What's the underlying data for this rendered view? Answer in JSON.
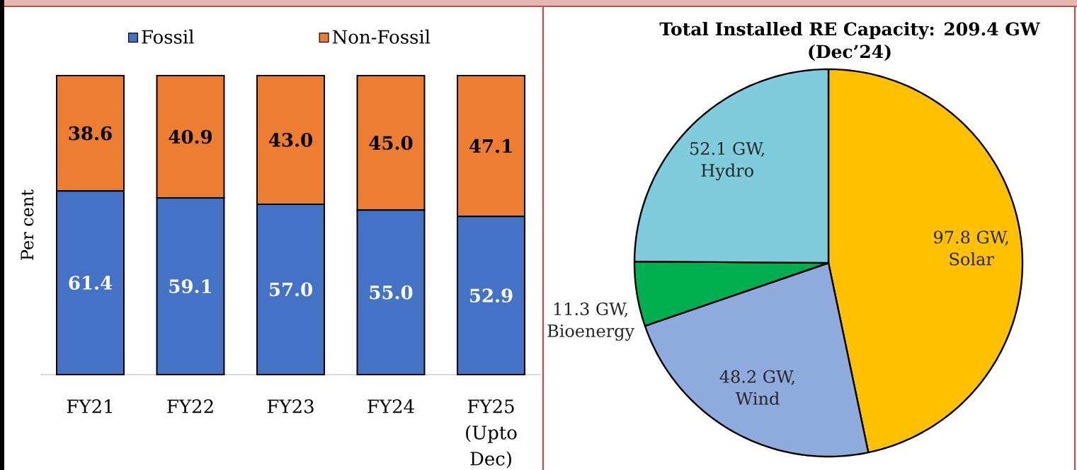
{
  "chart_data": [
    {
      "type": "bar",
      "stacked": true,
      "ylabel": "Per cent",
      "categories": [
        "FY21",
        "FY22",
        "FY23",
        "FY24",
        "FY25 (Upto Dec)"
      ],
      "series": [
        {
          "name": "Fossil",
          "color": "#4472c4",
          "values": [
            61.4,
            59.1,
            57.0,
            55.0,
            52.9
          ],
          "value_labels": [
            "61.4",
            "59.1",
            "57.0",
            "55.0",
            "52.9"
          ]
        },
        {
          "name": "Non-Fossil",
          "color": "#ed7d31",
          "values": [
            38.6,
            40.9,
            43.0,
            45.0,
            47.1
          ],
          "value_labels": [
            "38.6",
            "40.9",
            "43.0",
            "45.0",
            "47.1"
          ]
        }
      ],
      "legend": "top",
      "tick_labels": "x"
    },
    {
      "type": "pie",
      "title": "Total Installed RE Capacity: 209.4 GW (Dec’24)",
      "categories": [
        "Solar",
        "Wind",
        "Bioenergy",
        "Hydro"
      ],
      "values": [
        97.8,
        48.2,
        11.3,
        52.1
      ],
      "value_labels": [
        "97.8 GW,",
        "48.2 GW,",
        "11.3 GW,",
        "52.1 GW,"
      ],
      "colors": [
        "#ffc000",
        "#8faadc",
        "#00b050",
        "#7fcddc"
      ]
    }
  ]
}
